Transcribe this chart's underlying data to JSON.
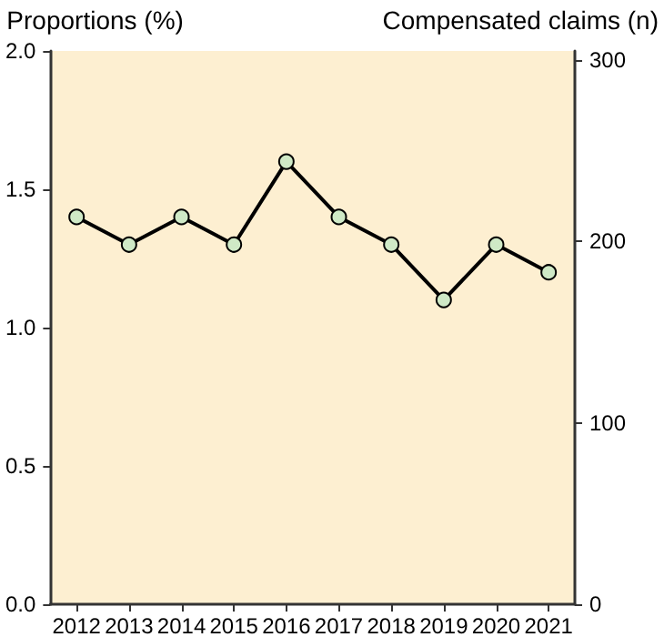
{
  "chart_data": {
    "type": "line",
    "ylabel": "Proportions (%)",
    "y2label": "Compensated claims (n)",
    "categories": [
      "2012",
      "2013",
      "2014",
      "2015",
      "2016",
      "2017",
      "2018",
      "2019",
      "2020",
      "2021"
    ],
    "series": [
      {
        "color": "#000000",
        "values": [
          1.4,
          1.3,
          1.4,
          1.3,
          1.6,
          1.4,
          1.3,
          1.1,
          1.3,
          1.2
        ]
      }
    ],
    "ylim": [
      0,
      2
    ],
    "yticks": [
      {
        "value": 0,
        "label": "0.0"
      },
      {
        "value": 0.5,
        "label": "0.5"
      },
      {
        "value": 1,
        "label": "1.0"
      },
      {
        "value": 1.5,
        "label": "1.5"
      },
      {
        "value": 2,
        "label": "2.0"
      }
    ],
    "y2lim": [
      0,
      305
    ],
    "y2ticks": [
      0,
      100,
      200,
      300
    ],
    "grid": false,
    "marker": "circle",
    "line_style": "solid"
  }
}
